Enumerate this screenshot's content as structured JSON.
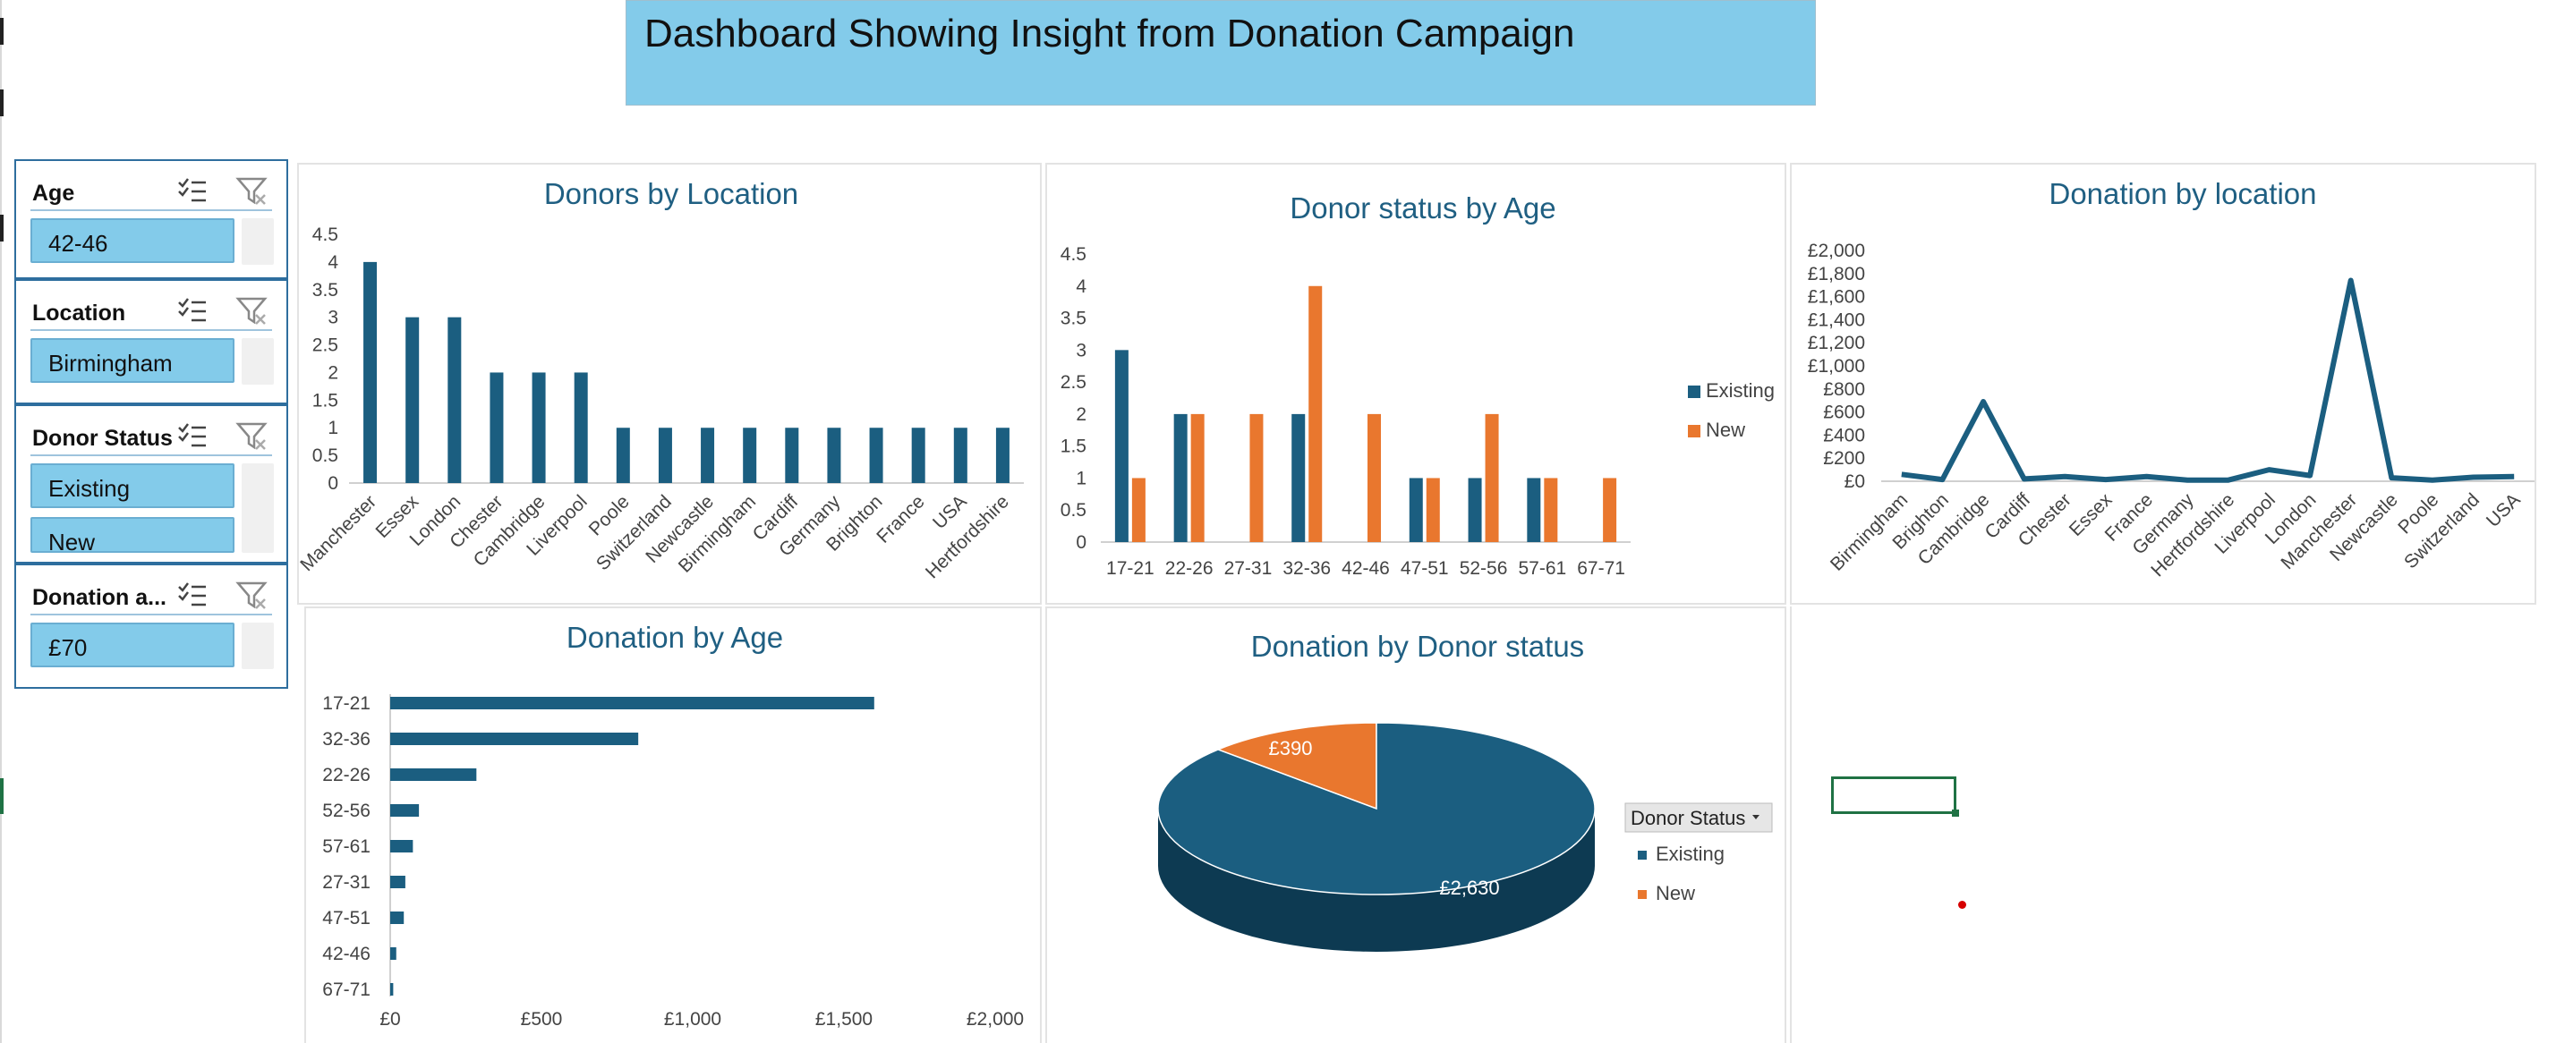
{
  "dashboard": {
    "title": "Dashboard Showing Insight from Donation Campaign"
  },
  "slicers": [
    {
      "title": "Age",
      "items": [
        "42-46"
      ]
    },
    {
      "title": "Location",
      "items": [
        "Birmingham"
      ]
    },
    {
      "title": "Donor Status",
      "items": [
        "Existing",
        "New"
      ]
    },
    {
      "title": "Donation a...",
      "items": [
        "£70"
      ]
    }
  ],
  "colors": {
    "primary": "#1b5e80",
    "secondary": "#e9772e",
    "title_fill": "#83cbea",
    "title_text": "#1f5f82"
  },
  "chart_data": [
    {
      "id": "donors-by-location",
      "type": "bar",
      "title": "Donors by Location",
      "categories": [
        "Manchester",
        "Essex",
        "London",
        "Chester",
        "Cambridge",
        "Liverpool",
        "Poole",
        "Switzerland",
        "Newcastle",
        "Birmingham",
        "Cardiff",
        "Germany",
        "Brighton",
        "France",
        "USA",
        "Hertfordshire"
      ],
      "values": [
        4,
        3,
        3,
        2,
        2,
        2,
        1,
        1,
        1,
        1,
        1,
        1,
        1,
        1,
        1,
        1
      ],
      "y_ticks": [
        "0",
        "0.5",
        "1",
        "1.5",
        "2",
        "2.5",
        "3",
        "3.5",
        "4",
        "4.5"
      ],
      "ylim": [
        0,
        4.5
      ],
      "color": "#1b5e80"
    },
    {
      "id": "donor-status-by-age",
      "type": "bar",
      "title": "Donor status by Age",
      "categories": [
        "17-21",
        "22-26",
        "27-31",
        "32-36",
        "42-46",
        "47-51",
        "52-56",
        "57-61",
        "67-71"
      ],
      "series": [
        {
          "name": "Existing",
          "values": [
            3,
            2,
            0,
            2,
            0,
            1,
            1,
            1,
            0
          ],
          "color": "#1b5e80"
        },
        {
          "name": "New",
          "values": [
            1,
            2,
            2,
            4,
            2,
            1,
            2,
            1,
            1
          ],
          "color": "#e9772e"
        }
      ],
      "y_ticks": [
        "0",
        "0.5",
        "1",
        "1.5",
        "2",
        "2.5",
        "3",
        "3.5",
        "4",
        "4.5"
      ],
      "ylim": [
        0,
        4.5
      ],
      "legend": "right"
    },
    {
      "id": "donation-by-location",
      "type": "line",
      "title": "Donation by location",
      "categories": [
        "Birmingham",
        "Brighton",
        "Cambridge",
        "Cardiff",
        "Chester",
        "Essex",
        "France",
        "Germany",
        "Hertfordshire",
        "Liverpool",
        "London",
        "Manchester",
        "Newcastle",
        "Poole",
        "Switzerland",
        "USA"
      ],
      "values": [
        60,
        15,
        690,
        20,
        40,
        15,
        40,
        10,
        10,
        100,
        50,
        1740,
        30,
        10,
        35,
        40
      ],
      "y_ticks": [
        "£0",
        "£200",
        "£400",
        "£600",
        "£800",
        "£1,000",
        "£1,200",
        "£1,400",
        "£1,600",
        "£1,800",
        "£2,000"
      ],
      "ylim": [
        0,
        2000
      ],
      "color": "#1b5e80"
    },
    {
      "id": "donation-by-age",
      "type": "bar",
      "orientation": "horizontal",
      "title": "Donation by Age",
      "categories": [
        "17-21",
        "32-36",
        "22-26",
        "52-56",
        "57-61",
        "27-31",
        "47-51",
        "42-46",
        "67-71"
      ],
      "values": [
        1600,
        820,
        285,
        95,
        75,
        50,
        45,
        20,
        10
      ],
      "x_ticks": [
        "£0",
        "£500",
        "£1,000",
        "£1,500",
        "£2,000"
      ],
      "xlim": [
        0,
        2000
      ],
      "color": "#1b5e80"
    },
    {
      "id": "donation-by-donor-status",
      "type": "pie",
      "title": "Donation by Donor status",
      "legend_title": "Donor Status",
      "legend": "right",
      "slices": [
        {
          "name": "Existing",
          "value": 2630,
          "label": "£2,630",
          "color": "#1b5e80"
        },
        {
          "name": "New",
          "value": 390,
          "label": "£390",
          "color": "#e9772e"
        }
      ]
    }
  ]
}
